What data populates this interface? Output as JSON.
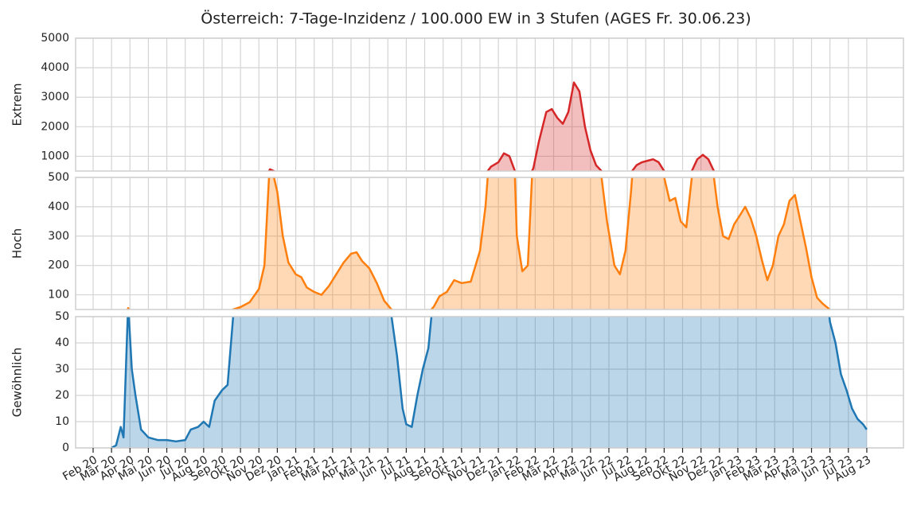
{
  "chart_data": {
    "type": "line",
    "title": "Österreich: 7-Tage-Inzidenz / 100.000 EW in 3 Stufen (AGES Fr. 30.06.23)",
    "x": [
      1.0,
      1.25,
      1.5,
      1.65,
      1.9,
      2.1,
      2.3,
      2.6,
      3.0,
      3.5,
      4.0,
      4.5,
      5.0,
      5.3,
      5.7,
      6.0,
      6.3,
      6.6,
      7.0,
      7.3,
      7.6,
      8.0,
      8.5,
      9.0,
      9.3,
      9.6,
      10.0,
      10.3,
      10.6,
      11.0,
      11.3,
      11.6,
      12.0,
      12.4,
      12.8,
      13.2,
      13.6,
      14.0,
      14.3,
      14.6,
      15.0,
      15.4,
      15.8,
      16.2,
      16.5,
      16.8,
      17.0,
      17.3,
      17.6,
      17.9,
      18.2,
      18.5,
      18.8,
      19.2,
      19.6,
      20.0,
      20.5,
      21.0,
      21.3,
      21.6,
      22.0,
      22.3,
      22.6,
      22.9,
      23.0,
      23.3,
      23.6,
      23.9,
      24.2,
      24.6,
      24.9,
      25.2,
      25.5,
      25.8,
      26.1,
      26.4,
      26.7,
      27.0,
      27.3,
      27.6,
      27.9,
      28.3,
      28.6,
      28.9,
      29.2,
      29.5,
      29.8,
      30.1,
      30.4,
      30.7,
      31.0,
      31.3,
      31.6,
      31.9,
      32.2,
      32.5,
      32.8,
      33.1,
      33.4,
      33.7,
      33.9,
      34.2,
      34.5,
      34.8,
      35.1,
      35.4,
      35.7,
      36.0,
      36.3,
      36.6,
      36.9,
      37.2,
      37.5,
      37.8,
      38.1,
      38.4,
      38.7,
      39.0,
      39.3,
      39.6,
      39.9,
      40.0,
      40.3,
      40.6,
      40.9,
      41.2,
      41.5,
      41.8,
      42.0
    ],
    "values": [
      0,
      1,
      8,
      4,
      55,
      30,
      20,
      7,
      4,
      3,
      3,
      2.5,
      3,
      7,
      8,
      10,
      8,
      18,
      22,
      24,
      50,
      58,
      75,
      120,
      200,
      560,
      450,
      300,
      210,
      170,
      160,
      125,
      110,
      100,
      130,
      170,
      210,
      240,
      245,
      215,
      190,
      140,
      80,
      50,
      35,
      15,
      9,
      8,
      20,
      30,
      38,
      60,
      95,
      110,
      150,
      140,
      145,
      250,
      400,
      650,
      800,
      1100,
      1000,
      500,
      300,
      180,
      200,
      600,
      1500,
      2500,
      2600,
      2300,
      2100,
      2500,
      3500,
      3200,
      2000,
      1200,
      700,
      500,
      350,
      200,
      170,
      250,
      450,
      700,
      800,
      850,
      900,
      800,
      500,
      420,
      430,
      350,
      330,
      500,
      900,
      1050,
      900,
      500,
      400,
      300,
      290,
      340,
      370,
      400,
      360,
      300,
      220,
      150,
      200,
      300,
      340,
      420,
      440,
      350,
      260,
      160,
      90,
      70,
      55,
      48,
      40,
      28,
      22,
      15,
      11,
      9,
      7
    ],
    "xlim": [
      -0.95,
      43.99
    ],
    "xticks": [
      {
        "value": 0,
        "label": "Feb 20"
      },
      {
        "value": 1,
        "label": "Mär 20"
      },
      {
        "value": 2,
        "label": "Apr 20"
      },
      {
        "value": 3,
        "label": "Mai 20"
      },
      {
        "value": 4,
        "label": "Jun 20"
      },
      {
        "value": 5,
        "label": "Jul 20"
      },
      {
        "value": 6,
        "label": "Aug 20"
      },
      {
        "value": 7,
        "label": "Sep 20"
      },
      {
        "value": 8,
        "label": "Okt 20"
      },
      {
        "value": 9,
        "label": "Nov 20"
      },
      {
        "value": 10,
        "label": "Dez 20"
      },
      {
        "value": 11,
        "label": "Jan 21"
      },
      {
        "value": 12,
        "label": "Feb 21"
      },
      {
        "value": 13,
        "label": "Mär 21"
      },
      {
        "value": 14,
        "label": "Apr 21"
      },
      {
        "value": 15,
        "label": "Mai 21"
      },
      {
        "value": 16,
        "label": "Jun 21"
      },
      {
        "value": 17,
        "label": "Jul 21"
      },
      {
        "value": 18,
        "label": "Aug 21"
      },
      {
        "value": 19,
        "label": "Sep 21"
      },
      {
        "value": 20,
        "label": "Okt 21"
      },
      {
        "value": 21,
        "label": "Nov 21"
      },
      {
        "value": 22,
        "label": "Dez 21"
      },
      {
        "value": 23,
        "label": "Jan 22"
      },
      {
        "value": 24,
        "label": "Feb 22"
      },
      {
        "value": 25,
        "label": "Mär 22"
      },
      {
        "value": 26,
        "label": "Apr 22"
      },
      {
        "value": 27,
        "label": "Mai 22"
      },
      {
        "value": 28,
        "label": "Jun 22"
      },
      {
        "value": 29,
        "label": "Jul 22"
      },
      {
        "value": 30,
        "label": "Aug 22"
      },
      {
        "value": 31,
        "label": "Sep 22"
      },
      {
        "value": 32,
        "label": "Okt 22"
      },
      {
        "value": 33,
        "label": "Nov 22"
      },
      {
        "value": 34,
        "label": "Dez 22"
      },
      {
        "value": 35,
        "label": "Jan 23"
      },
      {
        "value": 36,
        "label": "Feb 23"
      },
      {
        "value": 37,
        "label": "Mär 23"
      },
      {
        "value": 38,
        "label": "Apr 23"
      },
      {
        "value": 39,
        "label": "Mai 23"
      },
      {
        "value": 40,
        "label": "Jun 23"
      },
      {
        "value": 41,
        "label": "Jul 23"
      },
      {
        "value": 42,
        "label": "Aug 23"
      }
    ],
    "grid": true,
    "panels": [
      {
        "ylabel": "Extrem",
        "color": "#d62728",
        "ylim": [
          500,
          5000
        ],
        "yticks": [
          1000,
          2000,
          3000,
          4000,
          5000
        ]
      },
      {
        "ylabel": "Hoch",
        "color": "#ff7f0e",
        "ylim": [
          50,
          500
        ],
        "yticks": [
          100,
          200,
          300,
          400,
          500
        ]
      },
      {
        "ylabel": "Gewöhnlich",
        "color": "#1f77b4",
        "ylim": [
          0,
          50
        ],
        "yticks": [
          0,
          10,
          20,
          30,
          40,
          50
        ]
      }
    ]
  }
}
